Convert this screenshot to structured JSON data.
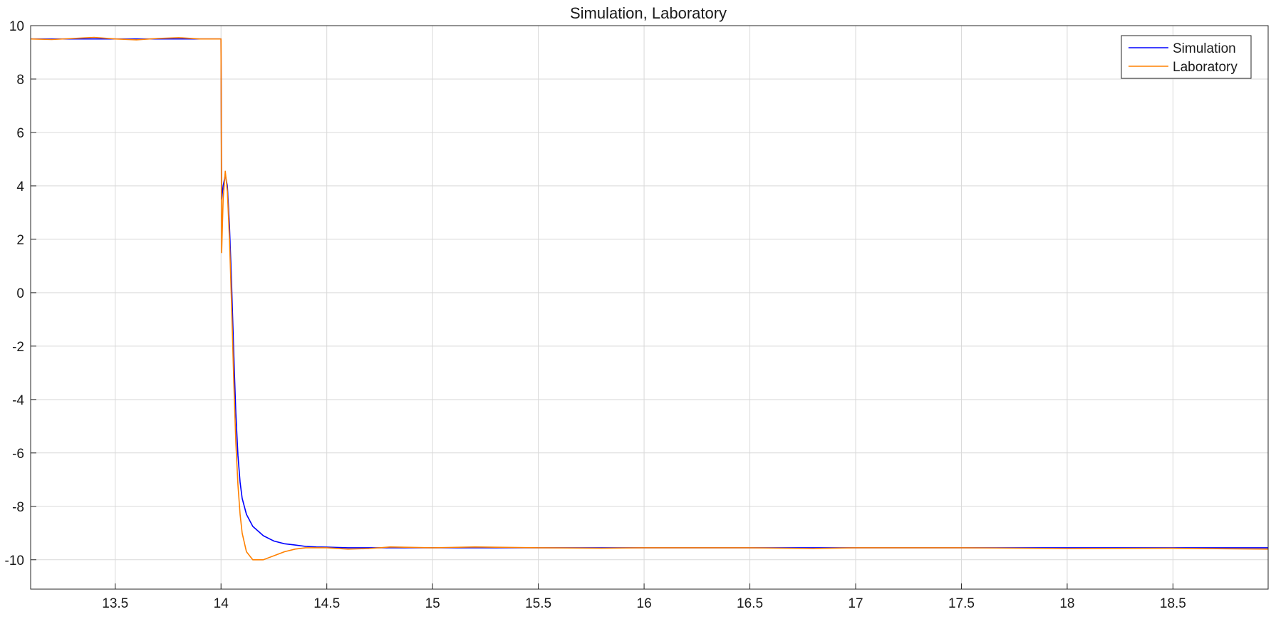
{
  "chart_data": {
    "type": "line",
    "title": "Simulation, Laboratory",
    "xlabel": "",
    "ylabel": "",
    "xlim": [
      13.1,
      18.95
    ],
    "ylim": [
      -11.1,
      10
    ],
    "xticks": [
      13.5,
      14,
      14.5,
      15,
      15.5,
      16,
      16.5,
      17,
      17.5,
      18,
      18.5
    ],
    "xtick_labels": [
      "13.5",
      "14",
      "14.5",
      "15",
      "15.5",
      "16",
      "16.5",
      "17",
      "17.5",
      "18",
      "18.5"
    ],
    "yticks": [
      10,
      8,
      6,
      4,
      2,
      0,
      -2,
      -4,
      -6,
      -8,
      -10
    ],
    "ytick_labels": [
      "10",
      "8",
      "6",
      "4",
      "2",
      "0",
      "-2",
      "-4",
      "-6",
      "-8",
      "-10"
    ],
    "grid": true,
    "legend_position": "top-right",
    "series": [
      {
        "name": "Simulation",
        "color": "#0000ff",
        "x": [
          13.1,
          13.3,
          13.5,
          13.7,
          13.9,
          13.995,
          14.0,
          14.003,
          14.01,
          14.02,
          14.03,
          14.04,
          14.05,
          14.06,
          14.07,
          14.08,
          14.09,
          14.1,
          14.12,
          14.15,
          14.2,
          14.25,
          14.3,
          14.35,
          14.4,
          14.45,
          14.5,
          14.6,
          14.8,
          15.0,
          15.5,
          16.0,
          16.5,
          17.0,
          17.5,
          18.0,
          18.5,
          18.95
        ],
        "y": [
          9.5,
          9.5,
          9.5,
          9.5,
          9.5,
          9.5,
          9.5,
          3.5,
          4.0,
          4.4,
          4.0,
          2.5,
          0.3,
          -2.2,
          -4.5,
          -6.1,
          -7.1,
          -7.7,
          -8.3,
          -8.75,
          -9.1,
          -9.3,
          -9.4,
          -9.45,
          -9.5,
          -9.52,
          -9.53,
          -9.55,
          -9.55,
          -9.55,
          -9.55,
          -9.55,
          -9.55,
          -9.55,
          -9.55,
          -9.55,
          -9.55,
          -9.55
        ]
      },
      {
        "name": "Laboratory",
        "color": "#ff8000",
        "x": [
          13.1,
          13.2,
          13.3,
          13.4,
          13.5,
          13.6,
          13.7,
          13.8,
          13.9,
          13.995,
          14.0,
          14.003,
          14.01,
          14.02,
          14.03,
          14.04,
          14.05,
          14.06,
          14.07,
          14.08,
          14.09,
          14.1,
          14.12,
          14.15,
          14.17,
          14.2,
          14.25,
          14.3,
          14.35,
          14.4,
          14.45,
          14.5,
          14.6,
          14.7,
          14.8,
          15.0,
          15.2,
          15.5,
          15.8,
          16.0,
          16.5,
          16.8,
          17.0,
          17.5,
          18.0,
          18.5,
          18.95
        ],
        "y": [
          9.5,
          9.48,
          9.52,
          9.56,
          9.5,
          9.47,
          9.52,
          9.55,
          9.5,
          9.5,
          9.5,
          1.5,
          3.5,
          4.55,
          3.8,
          2.0,
          -0.5,
          -3.2,
          -5.6,
          -7.2,
          -8.3,
          -9.0,
          -9.7,
          -10.0,
          -10.0,
          -10.0,
          -9.85,
          -9.7,
          -9.6,
          -9.55,
          -9.55,
          -9.55,
          -9.6,
          -9.58,
          -9.52,
          -9.55,
          -9.52,
          -9.55,
          -9.57,
          -9.55,
          -9.55,
          -9.58,
          -9.55,
          -9.55,
          -9.58,
          -9.57,
          -9.6
        ]
      }
    ]
  }
}
